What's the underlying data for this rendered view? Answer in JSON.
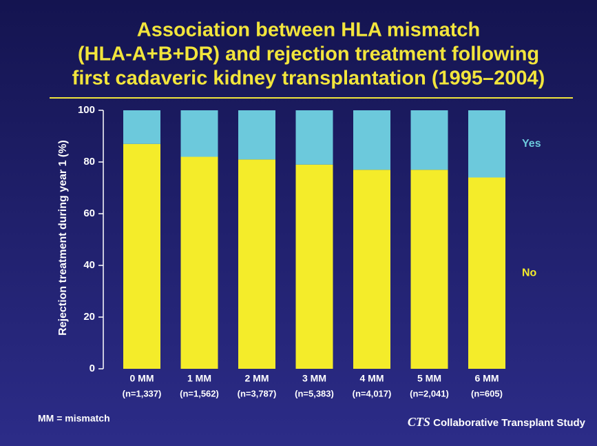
{
  "chart_data": {
    "type": "stacked-bar",
    "title": [
      "Association between HLA mismatch",
      "(HLA-A+B+DR) and rejection treatment following",
      "first cadaveric kidney transplantation (1995–2004)"
    ],
    "y_label": "Rejection treatment during year 1 (%)",
    "categories": [
      "0 MM",
      "1 MM",
      "2 MM",
      "3 MM",
      "4 MM",
      "5 MM",
      "6 MM"
    ],
    "category_counts": [
      "(n=1,337)",
      "(n=1,562)",
      "(n=3,787)",
      "(n=5,383)",
      "(n=4,017)",
      "(n=2,041)",
      "(n=605)"
    ],
    "series": [
      {
        "name": "No",
        "color": "#f4ec2a",
        "values": [
          87,
          82,
          81,
          79,
          77,
          77,
          74
        ]
      },
      {
        "name": "Yes",
        "color": "#6cc9dc",
        "values": [
          13,
          18,
          19,
          21,
          23,
          23,
          26
        ]
      }
    ],
    "ylim": [
      0,
      100
    ],
    "yticks": [
      0,
      20,
      40,
      60,
      80,
      100
    ],
    "footnote": "MM = mismatch",
    "source": {
      "abbr": "CTS",
      "text": "Collaborative Transplant Study"
    }
  }
}
